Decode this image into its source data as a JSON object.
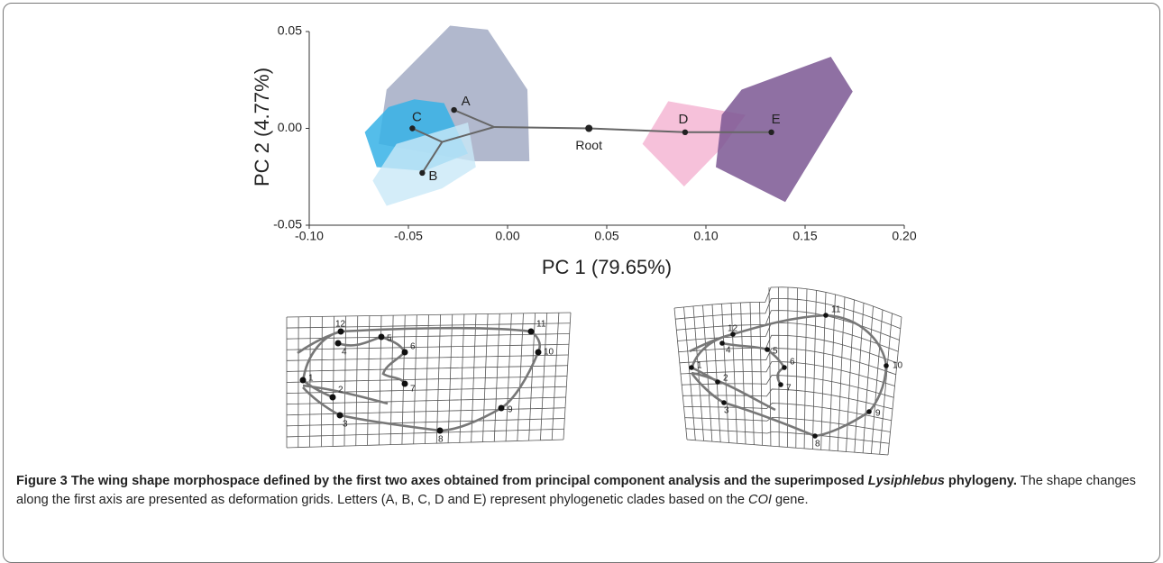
{
  "chart_data": {
    "type": "scatter",
    "x_label": "PC 1 (79.65%)",
    "y_label": "PC 2 (4.77%)",
    "xlim": [
      -0.1,
      0.2
    ],
    "xticks": [
      {
        "value": -0.1,
        "label": "-0.10"
      },
      {
        "value": -0.05,
        "label": "-0.05"
      },
      {
        "value": 0,
        "label": "0.00"
      },
      {
        "value": 0.05,
        "label": "0.05"
      },
      {
        "value": 0.1,
        "label": "0.10"
      },
      {
        "value": 0.15,
        "label": "0.15"
      },
      {
        "value": 0.2,
        "label": "0.20"
      }
    ],
    "ylim": [
      -0.05,
      0.05
    ],
    "yticks": [
      {
        "value": -0.05,
        "label": "-0.05"
      },
      {
        "value": 0,
        "label": "0.00"
      },
      {
        "value": 0.05,
        "label": "0.05"
      }
    ],
    "hulls": [
      {
        "color": "#a3abc4",
        "x": [
          -0.061,
          -0.029,
          -0.01,
          0.01,
          0.011,
          -0.017,
          -0.065
        ],
        "y": [
          0.02,
          0.053,
          0.051,
          0.02,
          -0.017,
          -0.017,
          -0.008
        ]
      },
      {
        "color": "#36b2e6",
        "x": [
          -0.072,
          -0.06,
          -0.047,
          -0.032,
          -0.02,
          -0.042,
          -0.066
        ],
        "y": [
          -0.002,
          0.011,
          0.015,
          0.013,
          -0.013,
          -0.022,
          -0.02
        ]
      },
      {
        "color": "#c9e8f7",
        "x": [
          -0.068,
          -0.056,
          -0.02,
          -0.016,
          -0.033,
          -0.061
        ],
        "y": [
          -0.027,
          -0.008,
          0.003,
          -0.02,
          -0.031,
          -0.04
        ]
      },
      {
        "color": "#f4b6d4",
        "x": [
          0.068,
          0.081,
          0.12,
          0.108,
          0.089
        ],
        "y": [
          -0.008,
          0.014,
          0.007,
          -0.01,
          -0.03
        ]
      },
      {
        "color": "#7b5793",
        "x": [
          0.105,
          0.108,
          0.118,
          0.163,
          0.174,
          0.14
        ],
        "y": [
          -0.02,
          0.007,
          0.02,
          0.037,
          0.019,
          -0.038
        ]
      }
    ],
    "nodes": {
      "labels": [
        "A",
        "B",
        "C",
        "D",
        "E",
        "Root",
        null,
        null
      ],
      "x": [
        -0.027,
        -0.043,
        -0.048,
        0.0895,
        0.133,
        0.041,
        -0.0068,
        -0.033
      ],
      "y": [
        0.0095,
        -0.023,
        0.0,
        -0.002,
        -0.002,
        0.0,
        0.0007,
        -0.007
      ]
    },
    "edges": [
      [
        4,
        3
      ],
      [
        3,
        5
      ],
      [
        5,
        6
      ],
      [
        6,
        0
      ],
      [
        6,
        7
      ],
      [
        7,
        2
      ],
      [
        7,
        1
      ]
    ]
  },
  "grids": [
    {
      "landmarks": [
        "1",
        "2",
        "3",
        "4",
        "5",
        "6",
        "7",
        "8",
        "9",
        "10",
        "11",
        "12"
      ]
    },
    {
      "landmarks": [
        "1",
        "2",
        "3",
        "4",
        "5",
        "6",
        "7",
        "8",
        "9",
        "10",
        "11",
        "12"
      ]
    }
  ],
  "caption": [
    {
      "text": "Figure 3 The wing shape morphospace defined by the first two axes obtained from principal component analysis and the superimposed ",
      "style": "bold"
    },
    {
      "text": "Lysiphlebus",
      "style": "bold-italic"
    },
    {
      "text": " phylogeny.",
      "style": "bold"
    },
    {
      "text": " The shape changes along the first axis are presented as deformation grids. Letters (A, B, C, D and E) represent phylogenetic clades based on the ",
      "style": "normal"
    },
    {
      "text": "COI",
      "style": "italic"
    },
    {
      "text": " gene.",
      "style": "normal"
    }
  ]
}
